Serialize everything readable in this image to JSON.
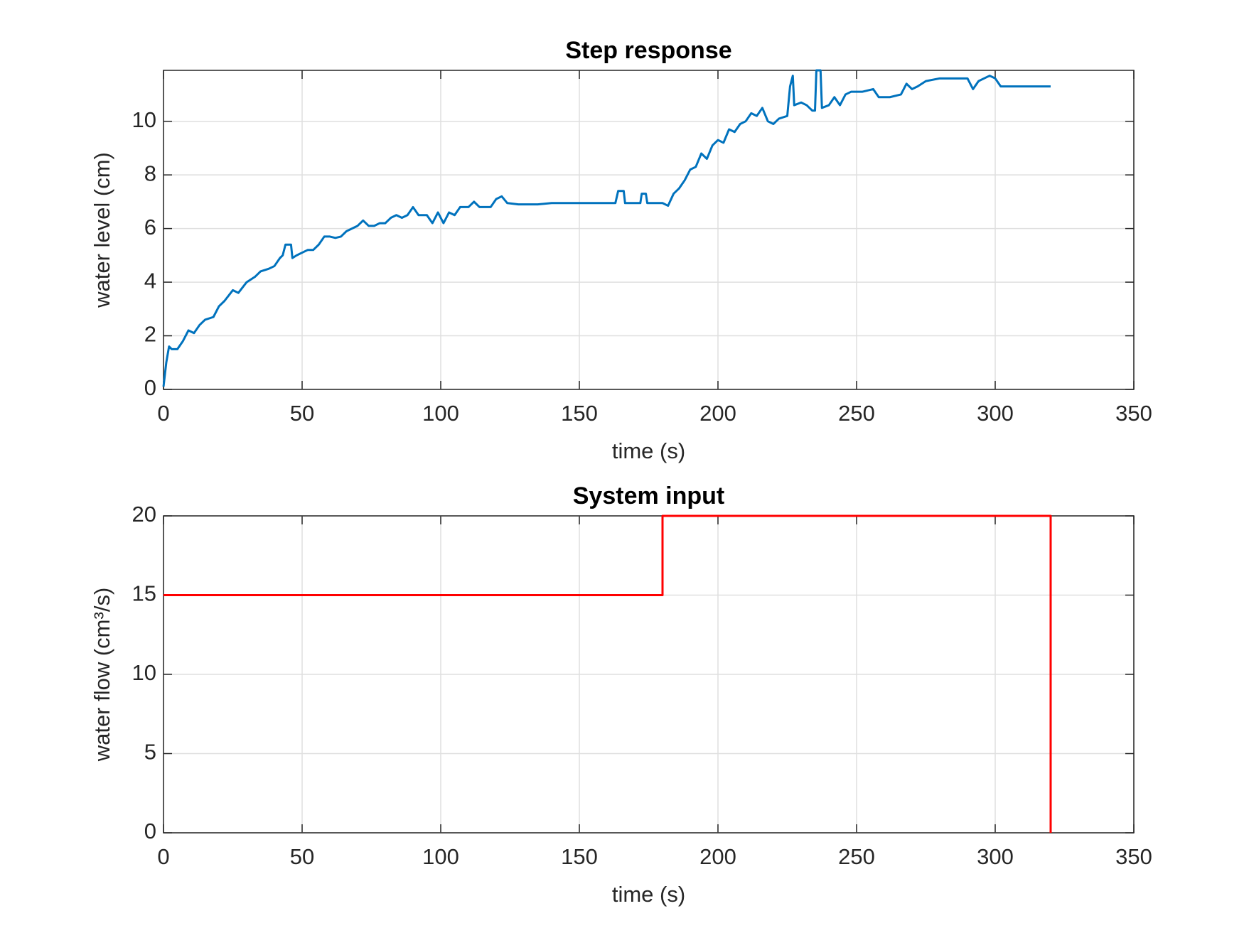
{
  "chart_data": [
    {
      "type": "line",
      "title": "Step response",
      "xlabel": "time (s)",
      "ylabel": "water level (cm)",
      "x": [
        0,
        1,
        2,
        3,
        5,
        7,
        9,
        11,
        13,
        15,
        18,
        20,
        22,
        25,
        27,
        30,
        33,
        35,
        38,
        40,
        42,
        43,
        44,
        46,
        46.5,
        48,
        50,
        52,
        54,
        56,
        58,
        60,
        62,
        64,
        66,
        68,
        70,
        72,
        74,
        76,
        78,
        80,
        82,
        84,
        86,
        88,
        90,
        92,
        95,
        97,
        99,
        101,
        103,
        105,
        107,
        110,
        112,
        114,
        118,
        120,
        122,
        124,
        128,
        135,
        140,
        150,
        160,
        163,
        164,
        166,
        166.5,
        172,
        172.5,
        174,
        174.5,
        180,
        182,
        184,
        186,
        188,
        190,
        192,
        194,
        196,
        198,
        200,
        202,
        204,
        206,
        208,
        210,
        212,
        214,
        216,
        218,
        220,
        222,
        225,
        226,
        227,
        227.5,
        230,
        232,
        234,
        235,
        235.5,
        237,
        237.5,
        240,
        242,
        244,
        246,
        248,
        252,
        256,
        258,
        262,
        266,
        268,
        270,
        272,
        275,
        280,
        285,
        290,
        292,
        294,
        296,
        298,
        300,
        302,
        310,
        320
      ],
      "values": [
        0.1,
        1.0,
        1.6,
        1.5,
        1.5,
        1.8,
        2.2,
        2.1,
        2.4,
        2.6,
        2.7,
        3.1,
        3.3,
        3.7,
        3.6,
        4.0,
        4.2,
        4.4,
        4.5,
        4.6,
        4.9,
        5.0,
        5.4,
        5.4,
        4.9,
        5.0,
        5.1,
        5.2,
        5.2,
        5.4,
        5.7,
        5.7,
        5.65,
        5.7,
        5.9,
        6.0,
        6.1,
        6.3,
        6.1,
        6.1,
        6.2,
        6.2,
        6.4,
        6.5,
        6.4,
        6.5,
        6.8,
        6.5,
        6.5,
        6.2,
        6.6,
        6.2,
        6.6,
        6.5,
        6.8,
        6.8,
        7.0,
        6.8,
        6.8,
        7.1,
        7.2,
        6.95,
        6.9,
        6.9,
        6.95,
        6.95,
        6.95,
        6.95,
        7.4,
        7.4,
        6.95,
        6.95,
        7.3,
        7.3,
        6.95,
        6.95,
        6.85,
        7.3,
        7.5,
        7.8,
        8.2,
        8.3,
        8.8,
        8.6,
        9.1,
        9.3,
        9.2,
        9.7,
        9.6,
        9.9,
        10.0,
        10.3,
        10.2,
        10.5,
        10.0,
        9.9,
        10.1,
        10.2,
        11.3,
        11.7,
        10.6,
        10.7,
        10.6,
        10.4,
        10.4,
        11.9,
        11.9,
        10.5,
        10.6,
        10.9,
        10.6,
        11.0,
        11.1,
        11.1,
        11.2,
        10.9,
        10.9,
        11.0,
        11.4,
        11.2,
        11.3,
        11.5,
        11.6,
        11.6,
        11.6,
        11.2,
        11.5,
        11.6,
        11.7,
        11.6,
        11.3,
        11.3,
        11.3
      ],
      "color": "#0072bd",
      "xlim": [
        0,
        350
      ],
      "xticks": [
        0,
        50,
        100,
        150,
        200,
        250,
        300,
        350
      ],
      "ylim": [
        0,
        11.9
      ],
      "yticks": [
        0,
        2,
        4,
        6,
        8,
        10
      ],
      "grid": true
    },
    {
      "type": "line",
      "title": "System input",
      "xlabel": "time (s)",
      "ylabel": "water flow (cm³/s)",
      "x": [
        0,
        180,
        180,
        320,
        320
      ],
      "values": [
        15,
        15,
        20,
        20,
        0
      ],
      "color": "#ff0000",
      "xlim": [
        0,
        350
      ],
      "xticks": [
        0,
        50,
        100,
        150,
        200,
        250,
        300,
        350
      ],
      "ylim": [
        0,
        20
      ],
      "yticks": [
        0,
        5,
        10,
        15,
        20
      ],
      "grid": true
    }
  ]
}
